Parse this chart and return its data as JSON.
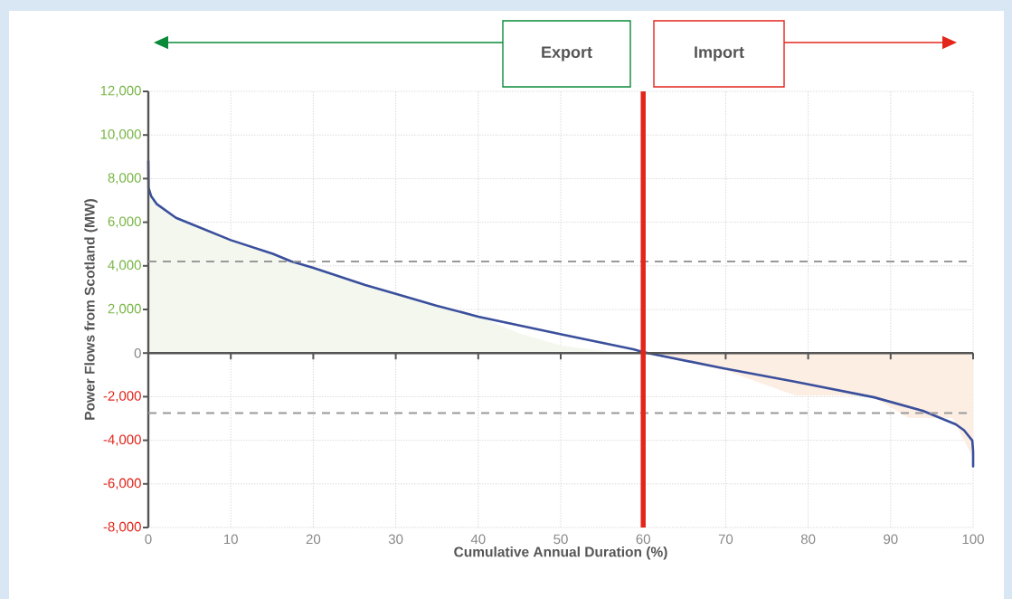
{
  "chart_data": {
    "type": "line",
    "xlabel": "Cumulative Annual Duration (%)",
    "ylabel": "Power Flows from Scotland (MW)",
    "xlim": [
      0,
      100
    ],
    "ylim": [
      -8000,
      12000
    ],
    "xticks": [
      0,
      10,
      20,
      30,
      40,
      50,
      60,
      70,
      80,
      90,
      100
    ],
    "yticks": [
      {
        "value": 12000,
        "label": "12,000"
      },
      {
        "value": 10000,
        "label": "10,000"
      },
      {
        "value": 8000,
        "label": "8,000"
      },
      {
        "value": 6000,
        "label": "6,000"
      },
      {
        "value": 4000,
        "label": "4,000"
      },
      {
        "value": 2000,
        "label": "2,000"
      },
      0,
      {
        "value": -2000,
        "label": "-2,000"
      },
      {
        "value": -4000,
        "label": "-4,000"
      },
      {
        "value": -6000,
        "label": "-6,000"
      },
      {
        "value": -8000,
        "label": "-8,000"
      }
    ],
    "grid": true,
    "series": [
      {
        "type": "area",
        "color": "#f3f7ee",
        "x": [
          0,
          0.03,
          0.34,
          1,
          3.36,
          10,
          15.1,
          17.3,
          20,
          26.3,
          30.2,
          34.9,
          40,
          45,
          50,
          57
        ],
        "values": [
          8800,
          7580,
          7200,
          6840,
          6200,
          5180,
          4550,
          4210,
          3910,
          3120,
          2700,
          2180,
          1670,
          900,
          350,
          0
        ]
      },
      {
        "type": "area",
        "color": "#fdeee4",
        "x": [
          60,
          69.9,
          78.5,
          87.6,
          92.2,
          97.5,
          100
        ],
        "values": [
          0,
          -790,
          -1950,
          -1950,
          -2980,
          -2980,
          -4800
        ]
      },
      {
        "color": "#3a4f9c",
        "x": [
          0,
          0.03,
          0.34,
          1,
          3.36,
          10,
          15.1,
          17.3,
          20,
          26.3,
          30.2,
          34.9,
          40,
          50.2,
          58.8,
          60.05,
          69.7,
          78.5,
          88,
          93.9,
          97.9,
          98.9,
          99.9,
          100,
          100
        ],
        "values": [
          8800,
          7580,
          7200,
          6840,
          6200,
          5180,
          4550,
          4210,
          3910,
          3120,
          2700,
          2180,
          1670,
          850,
          170,
          40,
          -700,
          -1320,
          -2030,
          -2650,
          -3270,
          -3540,
          -4010,
          -4510,
          -5200
        ]
      }
    ],
    "ref_lines": [
      {
        "axis": "y",
        "value": 4200,
        "color": "#999999",
        "line_style": "dashed"
      },
      {
        "axis": "y",
        "value": -2750,
        "color": "#999999",
        "line_style": "dashed"
      },
      {
        "axis": "x",
        "value": 60,
        "color": "#e2261c",
        "line_style": "solid"
      }
    ],
    "annotations": [
      "Export",
      "Import"
    ]
  }
}
